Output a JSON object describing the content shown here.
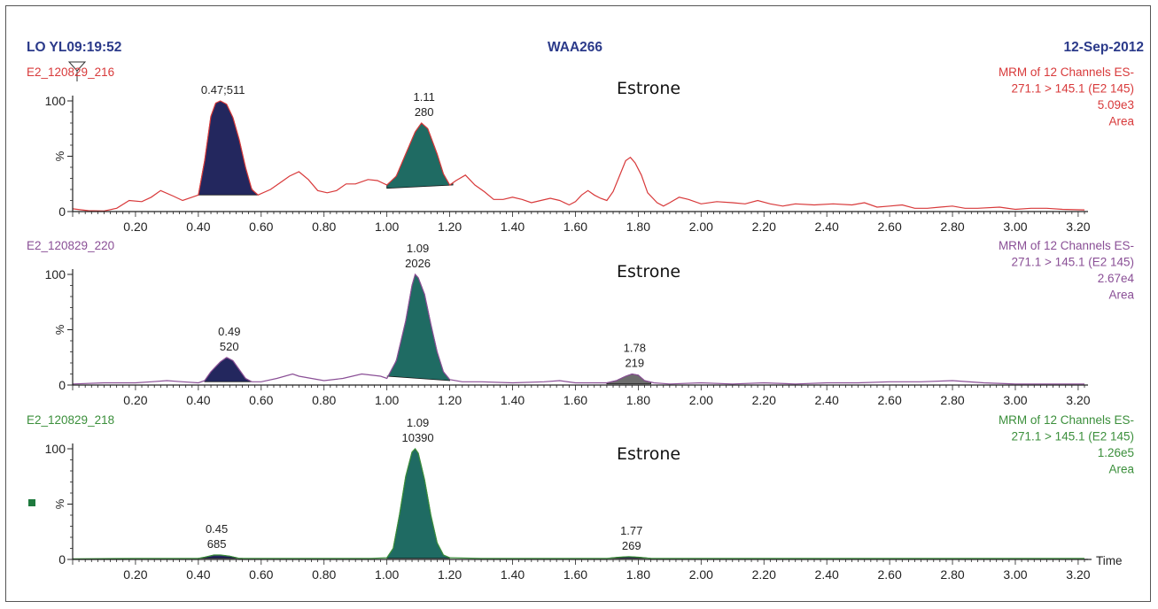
{
  "header": {
    "left": "LO YL09:19:52",
    "center": "WAA266",
    "right": "12-Sep-2012"
  },
  "colors": {
    "header": "#2b3a8a",
    "panel_red": "#d8393a",
    "panel_purple": "#8a4f96",
    "panel_green": "#3b8f3b",
    "peak_navy": "#23275e",
    "peak_teal": "#1f6b63",
    "peak_gray": "#6d6d6d",
    "axis": "#222222"
  },
  "legend_marker": {
    "icon": "square-icon",
    "color": "#1f7a3e"
  },
  "chart_data": [
    {
      "type": "line",
      "trace_name": "E2_120829_216",
      "trace_color": "#d8393a",
      "compound": "Estrone",
      "info": [
        "MRM of 12 Channels ES-",
        "271.1 > 145.1 (E2 145)",
        "5.09e3",
        "Area"
      ],
      "xlim": [
        0.0,
        3.22
      ],
      "ylim": [
        0,
        100
      ],
      "y_ticks": [
        "0",
        "%",
        "100"
      ],
      "x_ticks": [
        "0.20",
        "0.40",
        "0.60",
        "0.80",
        "1.00",
        "1.20",
        "1.40",
        "1.60",
        "1.80",
        "2.00",
        "2.20",
        "2.40",
        "2.60",
        "2.80",
        "3.00",
        "3.20"
      ],
      "x_axis_label": "",
      "trace": [
        [
          0.0,
          2.5
        ],
        [
          0.05,
          0.8
        ],
        [
          0.1,
          0.6
        ],
        [
          0.14,
          3
        ],
        [
          0.18,
          10
        ],
        [
          0.22,
          9
        ],
        [
          0.25,
          13
        ],
        [
          0.28,
          19
        ],
        [
          0.32,
          14
        ],
        [
          0.35,
          10
        ],
        [
          0.4,
          15
        ],
        [
          0.42,
          46
        ],
        [
          0.44,
          86
        ],
        [
          0.455,
          98
        ],
        [
          0.47,
          100
        ],
        [
          0.49,
          97
        ],
        [
          0.51,
          85
        ],
        [
          0.53,
          65
        ],
        [
          0.55,
          40
        ],
        [
          0.57,
          20
        ],
        [
          0.59,
          15
        ],
        [
          0.63,
          20
        ],
        [
          0.66,
          26
        ],
        [
          0.69,
          32
        ],
        [
          0.72,
          36
        ],
        [
          0.75,
          29
        ],
        [
          0.78,
          19
        ],
        [
          0.81,
          17
        ],
        [
          0.84,
          19
        ],
        [
          0.87,
          25
        ],
        [
          0.9,
          25
        ],
        [
          0.94,
          29
        ],
        [
          0.97,
          28
        ],
        [
          1.0,
          24
        ],
        [
          1.03,
          32
        ],
        [
          1.06,
          52
        ],
        [
          1.09,
          72
        ],
        [
          1.11,
          80
        ],
        [
          1.13,
          75
        ],
        [
          1.16,
          52
        ],
        [
          1.18,
          34
        ],
        [
          1.2,
          24
        ],
        [
          1.22,
          28
        ],
        [
          1.25,
          33
        ],
        [
          1.28,
          24
        ],
        [
          1.31,
          18
        ],
        [
          1.34,
          11
        ],
        [
          1.37,
          11
        ],
        [
          1.4,
          13
        ],
        [
          1.43,
          11
        ],
        [
          1.46,
          8
        ],
        [
          1.49,
          10
        ],
        [
          1.52,
          12
        ],
        [
          1.55,
          10
        ],
        [
          1.58,
          6
        ],
        [
          1.6,
          9
        ],
        [
          1.62,
          15
        ],
        [
          1.64,
          19
        ],
        [
          1.66,
          15
        ],
        [
          1.68,
          12
        ],
        [
          1.7,
          10
        ],
        [
          1.72,
          18
        ],
        [
          1.74,
          32
        ],
        [
          1.76,
          46
        ],
        [
          1.775,
          49
        ],
        [
          1.79,
          44
        ],
        [
          1.81,
          33
        ],
        [
          1.83,
          17
        ],
        [
          1.86,
          8
        ],
        [
          1.88,
          5
        ],
        [
          1.9,
          8
        ],
        [
          1.93,
          13
        ],
        [
          1.96,
          11
        ],
        [
          2.0,
          7
        ],
        [
          2.05,
          9
        ],
        [
          2.1,
          8
        ],
        [
          2.14,
          7
        ],
        [
          2.18,
          10
        ],
        [
          2.22,
          7
        ],
        [
          2.26,
          5
        ],
        [
          2.3,
          7
        ],
        [
          2.36,
          6
        ],
        [
          2.42,
          7
        ],
        [
          2.48,
          6
        ],
        [
          2.52,
          8
        ],
        [
          2.56,
          4
        ],
        [
          2.6,
          5
        ],
        [
          2.64,
          6
        ],
        [
          2.68,
          3
        ],
        [
          2.72,
          3
        ],
        [
          2.76,
          4
        ],
        [
          2.8,
          5
        ],
        [
          2.84,
          3
        ],
        [
          2.88,
          3
        ],
        [
          2.95,
          4
        ],
        [
          3.0,
          2
        ],
        [
          3.05,
          3
        ],
        [
          3.1,
          3
        ],
        [
          3.15,
          2
        ],
        [
          3.22,
          1.5
        ]
      ],
      "peaks": [
        {
          "label": "0.47;511",
          "label_lines": [
            "0.47;511"
          ],
          "rt": 0.47,
          "height": 100,
          "fill": "#23275e",
          "start": 0.4,
          "end": 0.59,
          "baseline": [
            15,
            15
          ]
        },
        {
          "label": "1.11 280",
          "label_lines": [
            "1.11",
            "280"
          ],
          "rt": 1.11,
          "height": 80,
          "fill": "#1f6b63",
          "start": 1.0,
          "end": 1.21,
          "baseline": [
            21,
            24
          ]
        }
      ]
    },
    {
      "type": "line",
      "trace_name": "E2_120829_220",
      "trace_color": "#8a4f96",
      "compound": "Estrone",
      "info": [
        "MRM of 12 Channels ES-",
        "271.1 > 145.1 (E2 145)",
        "2.67e4",
        "Area"
      ],
      "xlim": [
        0.0,
        3.22
      ],
      "ylim": [
        0,
        100
      ],
      "y_ticks": [
        "0",
        "%",
        "100"
      ],
      "x_ticks": [
        "0.20",
        "0.40",
        "0.60",
        "0.80",
        "1.00",
        "1.20",
        "1.40",
        "1.60",
        "1.80",
        "2.00",
        "2.20",
        "2.40",
        "2.60",
        "2.80",
        "3.00",
        "3.20"
      ],
      "x_axis_label": "",
      "trace": [
        [
          0.0,
          1
        ],
        [
          0.1,
          2
        ],
        [
          0.2,
          2
        ],
        [
          0.25,
          3
        ],
        [
          0.3,
          4
        ],
        [
          0.35,
          3
        ],
        [
          0.4,
          2
        ],
        [
          0.42,
          4
        ],
        [
          0.44,
          12
        ],
        [
          0.47,
          21
        ],
        [
          0.49,
          25
        ],
        [
          0.51,
          22
        ],
        [
          0.53,
          14
        ],
        [
          0.55,
          6
        ],
        [
          0.57,
          3
        ],
        [
          0.6,
          3
        ],
        [
          0.65,
          6
        ],
        [
          0.7,
          10
        ],
        [
          0.72,
          8
        ],
        [
          0.76,
          6
        ],
        [
          0.8,
          4
        ],
        [
          0.86,
          6
        ],
        [
          0.92,
          10
        ],
        [
          0.98,
          8
        ],
        [
          1.0,
          6
        ],
        [
          1.03,
          22
        ],
        [
          1.06,
          58
        ],
        [
          1.08,
          90
        ],
        [
          1.09,
          100
        ],
        [
          1.1,
          97
        ],
        [
          1.12,
          82
        ],
        [
          1.14,
          55
        ],
        [
          1.16,
          30
        ],
        [
          1.18,
          12
        ],
        [
          1.2,
          5
        ],
        [
          1.24,
          3
        ],
        [
          1.3,
          3
        ],
        [
          1.4,
          2
        ],
        [
          1.5,
          3
        ],
        [
          1.55,
          4
        ],
        [
          1.6,
          2
        ],
        [
          1.7,
          2
        ],
        [
          1.73,
          4
        ],
        [
          1.76,
          8
        ],
        [
          1.78,
          10
        ],
        [
          1.8,
          9
        ],
        [
          1.82,
          4
        ],
        [
          1.85,
          2
        ],
        [
          1.9,
          1
        ],
        [
          2.0,
          2
        ],
        [
          2.1,
          1
        ],
        [
          2.2,
          2
        ],
        [
          2.3,
          1
        ],
        [
          2.4,
          2
        ],
        [
          2.5,
          2
        ],
        [
          2.6,
          3
        ],
        [
          2.7,
          3
        ],
        [
          2.8,
          4
        ],
        [
          2.9,
          2
        ],
        [
          3.0,
          1
        ],
        [
          3.1,
          1
        ],
        [
          3.22,
          1
        ]
      ],
      "peaks": [
        {
          "label": "0.49 520",
          "label_lines": [
            "0.49",
            "520"
          ],
          "rt": 0.49,
          "height": 25,
          "fill": "#23275e",
          "start": 0.42,
          "end": 0.57,
          "baseline": [
            3,
            3
          ]
        },
        {
          "label": "1.09 2026",
          "label_lines": [
            "1.09",
            "2026"
          ],
          "rt": 1.09,
          "height": 100,
          "fill": "#1f6b63",
          "start": 1.0,
          "end": 1.2,
          "baseline": [
            8,
            4
          ]
        },
        {
          "label": "1.78 219",
          "label_lines": [
            "1.78",
            "219"
          ],
          "rt": 1.78,
          "height": 10,
          "fill": "#6d6d6d",
          "start": 1.7,
          "end": 1.84,
          "baseline": [
            1,
            1
          ]
        }
      ]
    },
    {
      "type": "line",
      "trace_name": "E2_120829_218",
      "trace_color": "#3b8f3b",
      "compound": "Estrone",
      "info": [
        "MRM of 12 Channels ES-",
        "271.1 > 145.1 (E2 145)",
        "1.26e5",
        "Area"
      ],
      "xlim": [
        0.0,
        3.22
      ],
      "ylim": [
        0,
        100
      ],
      "y_ticks": [
        "0",
        "%",
        "100"
      ],
      "x_ticks": [
        "0.20",
        "0.40",
        "0.60",
        "0.80",
        "1.00",
        "1.20",
        "1.40",
        "1.60",
        "1.80",
        "2.00",
        "2.20",
        "2.40",
        "2.60",
        "2.80",
        "3.00",
        "3.20"
      ],
      "x_axis_label": "Time",
      "trace": [
        [
          0.0,
          0.5
        ],
        [
          0.2,
          1
        ],
        [
          0.3,
          1
        ],
        [
          0.4,
          1
        ],
        [
          0.42,
          2
        ],
        [
          0.45,
          4
        ],
        [
          0.47,
          4
        ],
        [
          0.5,
          3
        ],
        [
          0.53,
          1
        ],
        [
          0.6,
          1
        ],
        [
          0.8,
          1
        ],
        [
          0.95,
          1
        ],
        [
          1.0,
          1.5
        ],
        [
          1.02,
          10
        ],
        [
          1.04,
          40
        ],
        [
          1.06,
          75
        ],
        [
          1.08,
          97
        ],
        [
          1.09,
          100
        ],
        [
          1.1,
          96
        ],
        [
          1.12,
          72
        ],
        [
          1.14,
          40
        ],
        [
          1.16,
          15
        ],
        [
          1.18,
          4
        ],
        [
          1.2,
          1.5
        ],
        [
          1.3,
          1
        ],
        [
          1.5,
          1
        ],
        [
          1.7,
          1
        ],
        [
          1.74,
          2
        ],
        [
          1.77,
          2.5
        ],
        [
          1.8,
          2
        ],
        [
          1.84,
          1
        ],
        [
          2.0,
          1
        ],
        [
          2.4,
          1
        ],
        [
          2.8,
          1
        ],
        [
          3.22,
          1
        ]
      ],
      "peaks": [
        {
          "label": "0.45 685",
          "label_lines": [
            "0.45",
            "685"
          ],
          "rt": 0.45,
          "height": 4,
          "fill": "#23275e",
          "start": 0.4,
          "end": 0.54,
          "baseline": [
            1,
            1
          ]
        },
        {
          "label": "1.09 10390",
          "label_lines": [
            "1.09",
            "10390"
          ],
          "rt": 1.09,
          "height": 100,
          "fill": "#1f6b63",
          "start": 1.0,
          "end": 1.2,
          "baseline": [
            1,
            1
          ]
        },
        {
          "label": "1.77 269",
          "label_lines": [
            "1.77",
            "269"
          ],
          "rt": 1.77,
          "height": 2.5,
          "fill": "#23275e",
          "start": 1.71,
          "end": 1.84,
          "baseline": [
            1,
            1
          ]
        }
      ]
    }
  ]
}
